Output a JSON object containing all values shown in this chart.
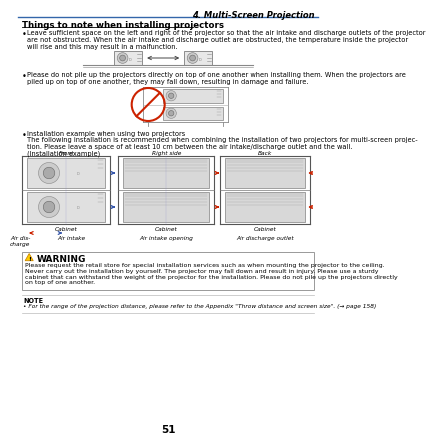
{
  "page_num": "51",
  "chapter_header": "4. Multi-Screen Projection",
  "section_title": "Things to note when installing projectors",
  "bullet1_text": "Leave sufficient space on the left and right of the projector so that the air intake and discharge outlets of the projector\nare not obstructed. When the air intake and discharge outlet are obstructed, the temperature inside the projector\nwill rise and this may result in a malfunction.",
  "bullet2_text": "Please do not pile up the projectors directly on top of one another when installing them. When the projectors are\npiled up on top of one another, they may fall down, resulting in damage and failure.",
  "bullet3_header": "Installation example when using two projectors",
  "bullet3_body": "The following installation is recommended when combining the installation of two projectors for multi-screen projec-\ntion. Please leave a space of at least 10 cm between the air intake/discharge outlet and the wall.\n(Installation example)",
  "cab_labels": [
    "Front",
    "Right side",
    "Back"
  ],
  "cab_sublabels": [
    "Air dis-\ncharge",
    "Air intake",
    "Air intake opening",
    "Air discharge outlet"
  ],
  "cab_bottom": [
    "Cabinet",
    "Cabinet",
    "Cabinet"
  ],
  "warning_title": "WARNING",
  "warning_text": "Please request the retail store for special installation services such as when mounting the projector to the ceiling.\nNever carry out the installation by yourself. The projector may fall down and result in injury. Please use a sturdy\ncabinet that can withstand the weight of the projector for the installation. Please do not pile up the projectors directly\non top of one another.",
  "note_title": "NOTE",
  "note_text": "For the range of the projection distance, please refer to the Appendix \"Throw distance and screen size\". (→ page 158)",
  "bg_color": "#ffffff",
  "header_line_color": "#3366aa",
  "text_color": "#000000",
  "warning_border_color": "#999999",
  "blue_arrow_color": "#3355aa",
  "red_arrow_color": "#cc2200",
  "no_sign_color": "#cc2200",
  "body_fs": 4.8,
  "small_fs": 4.2,
  "title_fs": 6.2,
  "chapter_fs": 6.0,
  "warn_title_fs": 6.5,
  "page_fs": 7.5
}
